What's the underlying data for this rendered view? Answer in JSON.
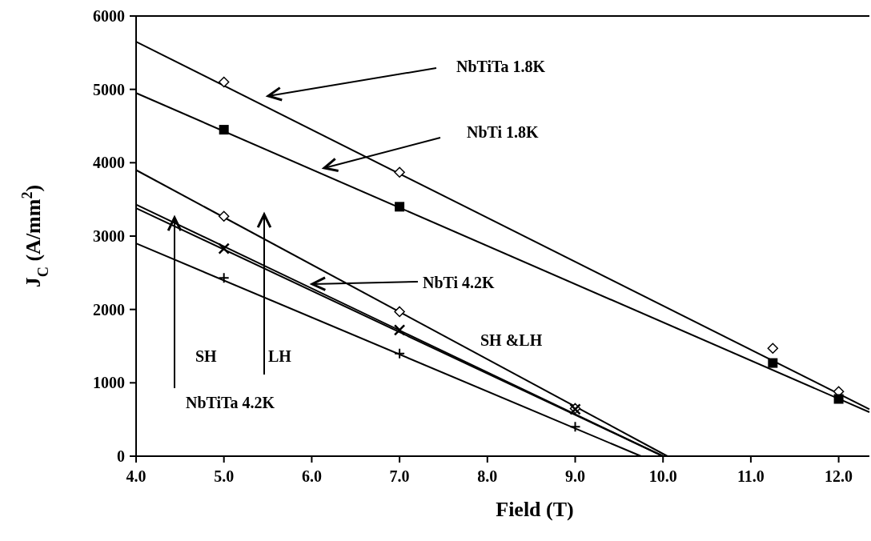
{
  "chart_data": {
    "type": "line",
    "xlabel": "Field (T)",
    "ylabel": "J$_{C}$ (A/mm$^{2}$)",
    "xlim": [
      4,
      12.35
    ],
    "ylim": [
      0,
      6000
    ],
    "xticks": [
      {
        "value": 4,
        "label": "4.0"
      },
      {
        "value": 5,
        "label": "5.0"
      },
      {
        "value": 6,
        "label": "6.0"
      },
      {
        "value": 7,
        "label": "7.0"
      },
      {
        "value": 8,
        "label": "8.0"
      },
      {
        "value": 9,
        "label": "9.0"
      },
      {
        "value": 10,
        "label": "10.0"
      },
      {
        "value": 11,
        "label": "11.0"
      },
      {
        "value": 12,
        "label": "12.0"
      }
    ],
    "yticks": [
      0,
      1000,
      2000,
      3000,
      4000,
      5000,
      6000
    ],
    "grid": false,
    "series": [
      {
        "color": "#000000",
        "marker": "none",
        "x": [
          4,
          12.35
        ],
        "values": [
          5650,
          640
        ]
      },
      {
        "type": "scatter",
        "color": "#000000",
        "marker": "diamond",
        "x": [
          5,
          7,
          11.25,
          12
        ],
        "values": [
          5100,
          3870,
          1470,
          880
        ]
      },
      {
        "color": "#000000",
        "marker": "none",
        "x": [
          4,
          12.35
        ],
        "values": [
          4950,
          600
        ]
      },
      {
        "type": "scatter",
        "color": "#000000",
        "marker": "square",
        "x": [
          5,
          7,
          11.25,
          12
        ],
        "values": [
          4450,
          3400,
          1270,
          780
        ]
      },
      {
        "color": "#000000",
        "marker": "none",
        "x": [
          4,
          10.05
        ],
        "values": [
          3900,
          0
        ]
      },
      {
        "type": "scatter",
        "color": "#000000",
        "marker": "diamond",
        "x": [
          5,
          7,
          9
        ],
        "values": [
          3270,
          1970,
          650
        ]
      },
      {
        "color": "#000000",
        "marker": "none",
        "x": [
          4,
          10
        ],
        "values": [
          3430,
          0
        ]
      },
      {
        "color": "#000000",
        "marker": "none",
        "x": [
          4,
          10
        ],
        "values": [
          3380,
          0
        ]
      },
      {
        "type": "scatter",
        "color": "#000000",
        "marker": "cross",
        "x": [
          5,
          7,
          9
        ],
        "values": [
          2830,
          1720,
          640
        ]
      },
      {
        "color": "#000000",
        "marker": "none",
        "x": [
          4,
          9.75
        ],
        "values": [
          2900,
          0
        ]
      },
      {
        "type": "scatter",
        "color": "#000000",
        "marker": "plus",
        "x": [
          5,
          7,
          9
        ],
        "values": [
          2430,
          1400,
          400
        ]
      }
    ],
    "annotations": [
      "NbTiTa 1.8K",
      "NbTi 1.8K",
      "NbTi 4.2K",
      "SH &LH",
      "SH",
      "LH",
      "NbTiTa 4.2K"
    ]
  }
}
